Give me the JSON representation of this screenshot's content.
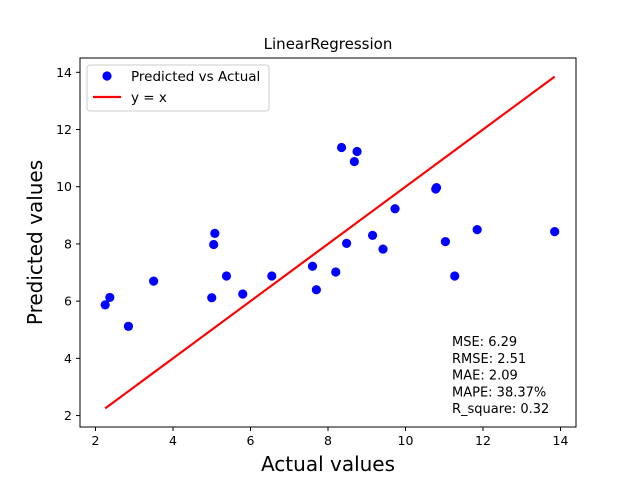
{
  "chart_data": {
    "type": "scatter",
    "title": "LinearRegression",
    "xlabel": "Actual values",
    "ylabel": "Predicted values",
    "xlim": [
      1.6,
      14.4
    ],
    "ylim": [
      1.6,
      14.5
    ],
    "xticks": [
      2,
      4,
      6,
      8,
      10,
      12,
      14
    ],
    "yticks": [
      2,
      4,
      6,
      8,
      10,
      12,
      14
    ],
    "grid": false,
    "legend_position": "top-left",
    "series": [
      {
        "name": "Predicted vs Actual",
        "kind": "scatter",
        "color": "#0000ff",
        "points": [
          {
            "x": 2.25,
            "y": 5.87
          },
          {
            "x": 2.37,
            "y": 6.13
          },
          {
            "x": 2.85,
            "y": 5.12
          },
          {
            "x": 3.5,
            "y": 6.7
          },
          {
            "x": 5.0,
            "y": 6.12
          },
          {
            "x": 5.05,
            "y": 7.98
          },
          {
            "x": 5.08,
            "y": 8.37
          },
          {
            "x": 5.38,
            "y": 6.88
          },
          {
            "x": 5.8,
            "y": 6.25
          },
          {
            "x": 6.55,
            "y": 6.88
          },
          {
            "x": 7.6,
            "y": 7.22
          },
          {
            "x": 7.7,
            "y": 6.4
          },
          {
            "x": 8.2,
            "y": 7.02
          },
          {
            "x": 8.35,
            "y": 11.37
          },
          {
            "x": 8.48,
            "y": 8.02
          },
          {
            "x": 8.68,
            "y": 10.88
          },
          {
            "x": 8.75,
            "y": 11.23
          },
          {
            "x": 9.15,
            "y": 8.3
          },
          {
            "x": 9.42,
            "y": 7.82
          },
          {
            "x": 9.73,
            "y": 9.23
          },
          {
            "x": 10.78,
            "y": 9.92
          },
          {
            "x": 10.8,
            "y": 9.97
          },
          {
            "x": 11.03,
            "y": 8.08
          },
          {
            "x": 11.27,
            "y": 6.88
          },
          {
            "x": 11.85,
            "y": 8.5
          },
          {
            "x": 13.85,
            "y": 8.43
          }
        ]
      },
      {
        "name": "y = x",
        "kind": "line",
        "color": "#ff0000",
        "points": [
          {
            "x": 2.25,
            "y": 2.25
          },
          {
            "x": 13.85,
            "y": 13.85
          }
        ]
      }
    ],
    "annotations": [
      "MSE: 6.29",
      "RMSE: 2.51",
      "MAE: 2.09",
      "MAPE: 38.37%",
      "R_square: 0.32"
    ]
  }
}
